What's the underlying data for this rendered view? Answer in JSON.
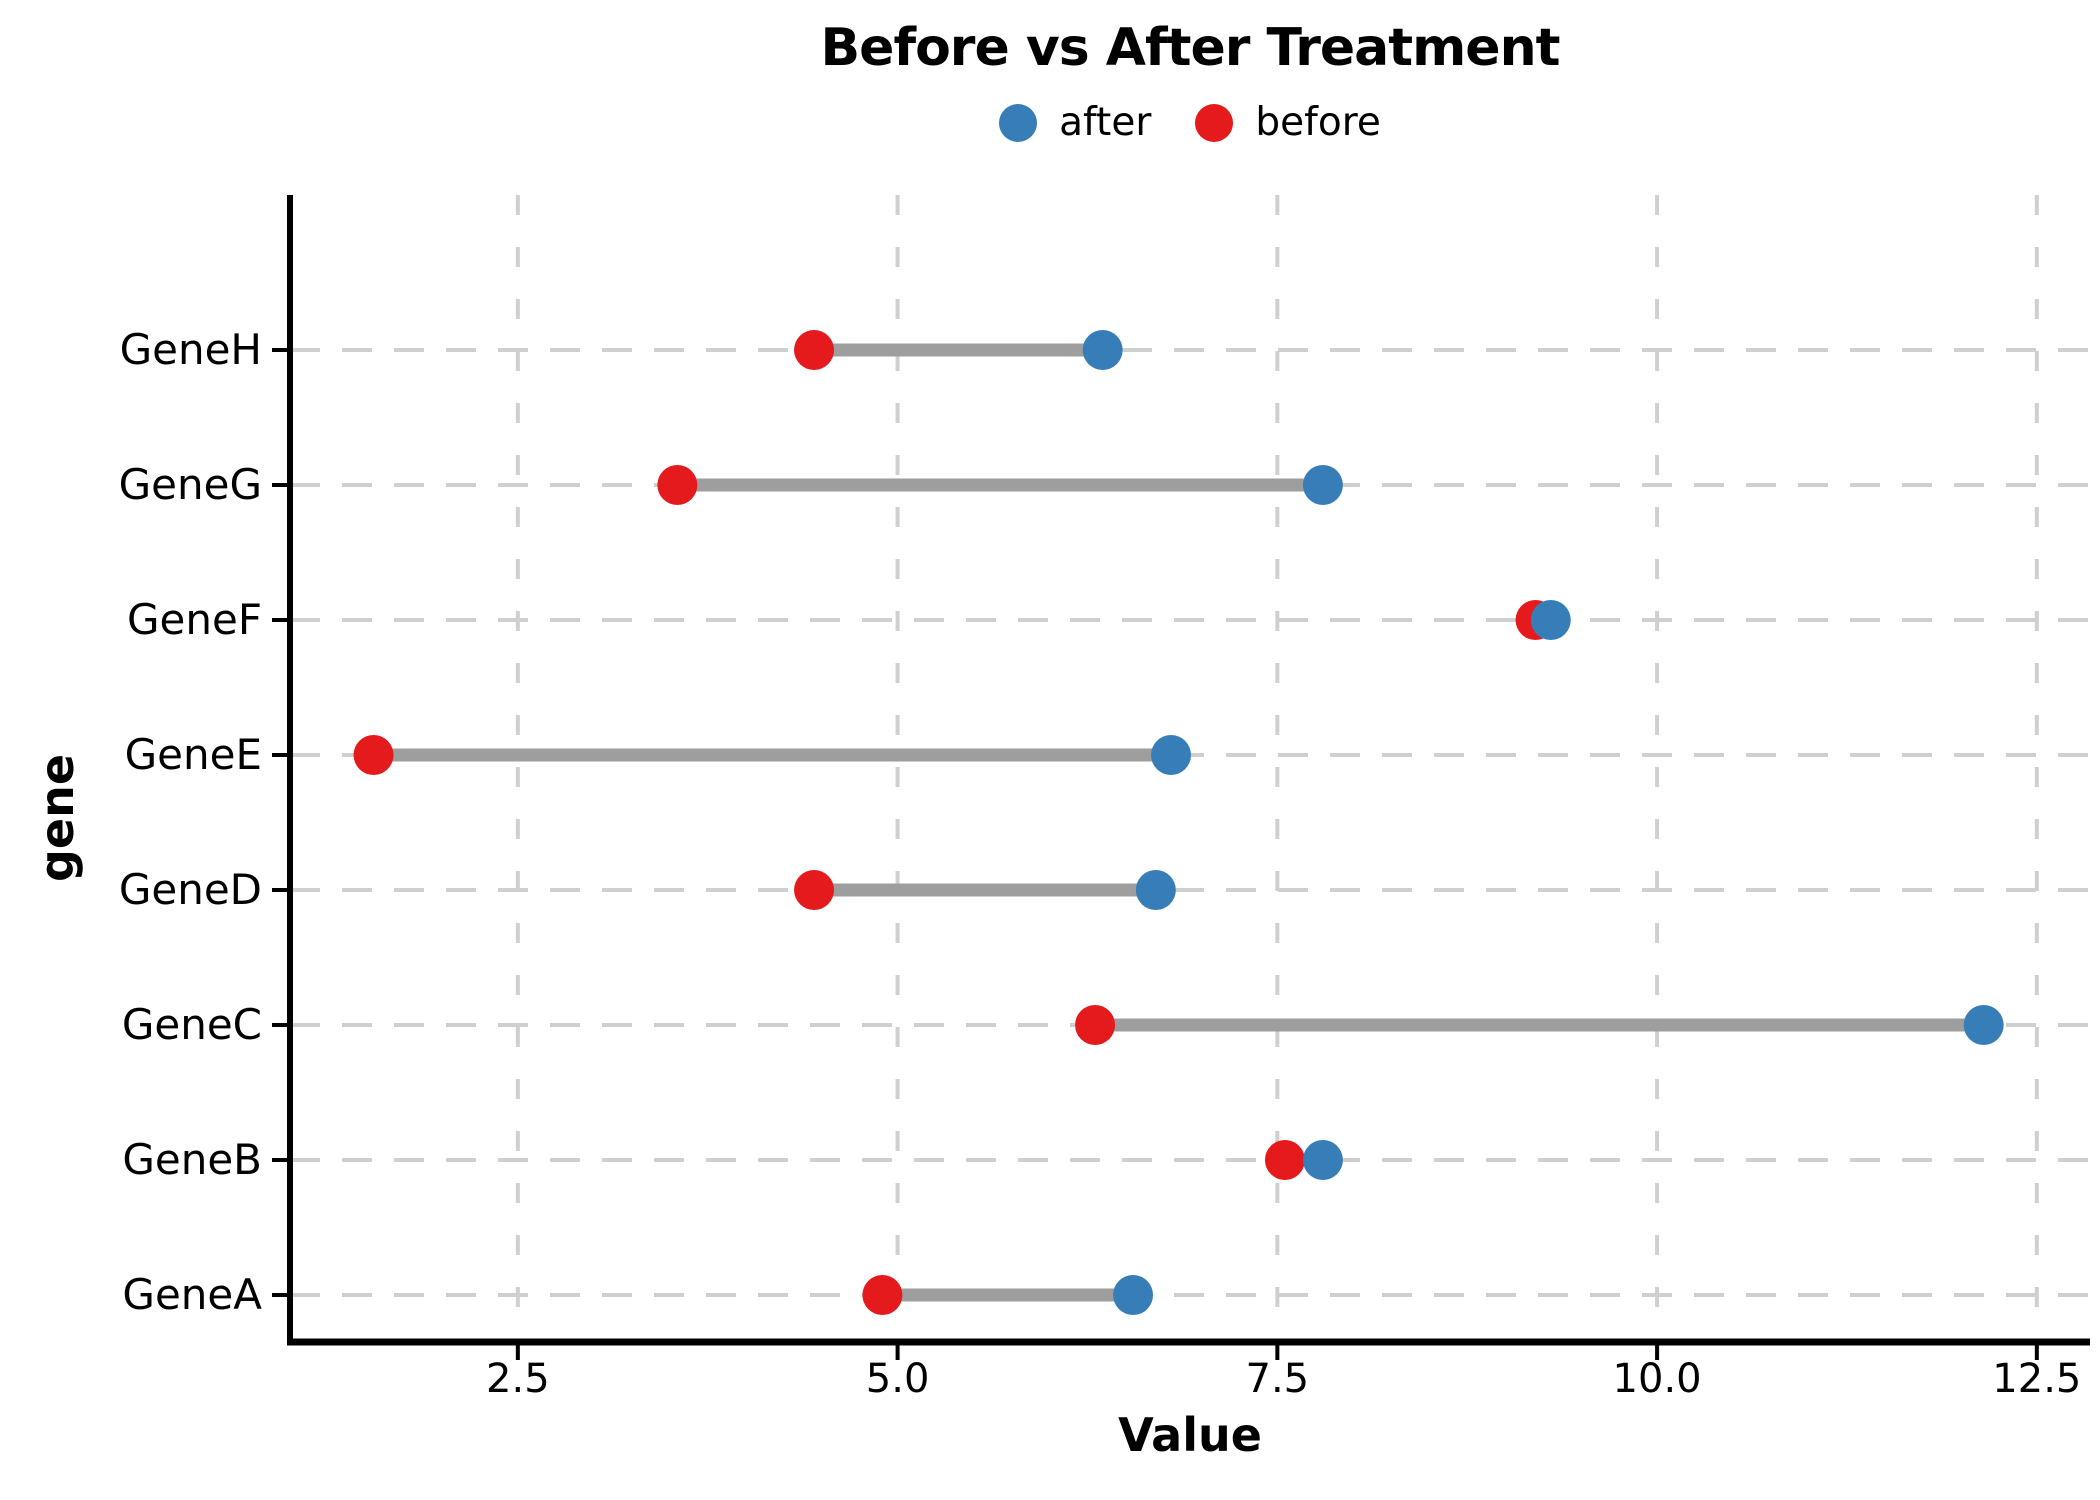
{
  "title": "Before vs After Treatment",
  "legend": {
    "position": "top-center",
    "items": [
      {
        "label": "after",
        "color": "#377eb8"
      },
      {
        "label": "before",
        "color": "#e41a1c"
      }
    ]
  },
  "chart_data": {
    "type": "scatter",
    "subtype": "dumbbell",
    "orientation": "horizontal",
    "title": "Before vs After Treatment",
    "xlabel": "Value",
    "ylabel": "gene",
    "categories_top_to_bottom": [
      "GeneH",
      "GeneG",
      "GeneF",
      "GeneE",
      "GeneD",
      "GeneC",
      "GeneB",
      "GeneA"
    ],
    "series": [
      {
        "name": "before",
        "color": "#e41a1c",
        "values": [
          4.45,
          3.55,
          9.2,
          1.55,
          4.45,
          6.3,
          7.55,
          4.9
        ]
      },
      {
        "name": "after",
        "color": "#377eb8",
        "values": [
          6.35,
          7.8,
          9.3,
          6.8,
          6.7,
          12.15,
          7.8,
          6.55
        ]
      }
    ],
    "connector_color": "#9e9e9e",
    "x_ticks": [
      2.5,
      5.0,
      7.5,
      10.0,
      12.5
    ],
    "x_tick_labels": [
      "2.5",
      "5.0",
      "7.5",
      "10.0",
      "12.5"
    ],
    "xlim": [
      1.0,
      12.85
    ],
    "grid": "dashed-both-axes",
    "grid_color": "#cfcfcf",
    "axis_color": "#000000",
    "legend_position": "top-center"
  }
}
